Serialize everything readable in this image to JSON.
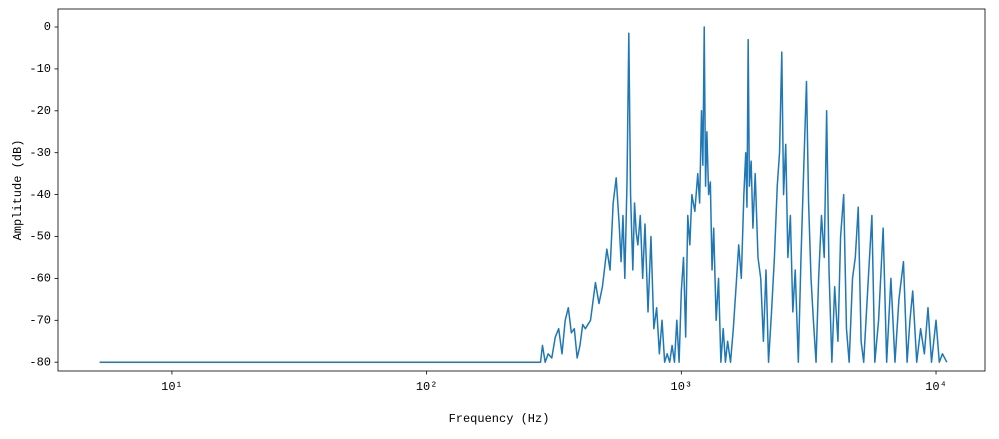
{
  "chart_data": {
    "type": "line",
    "xlabel": "Frequency (Hz)",
    "ylabel": "Amplitude (dB)",
    "xscale": "log",
    "xlim": [
      3.57,
      15570
    ],
    "ylim": [
      -82.1,
      4.3
    ],
    "xticks": [
      {
        "value": 10,
        "label": "10¹"
      },
      {
        "value": 100,
        "label": "10²"
      },
      {
        "value": 1000,
        "label": "10³"
      },
      {
        "value": 10000,
        "label": "10⁴"
      }
    ],
    "yticks": [
      0,
      -10,
      -20,
      -30,
      -40,
      -50,
      -60,
      -70,
      -80
    ],
    "grid": false,
    "x": [
      5.2,
      280,
      285,
      292,
      300,
      310,
      320,
      330,
      340,
      350,
      360,
      370,
      380,
      390,
      400,
      410,
      420,
      440,
      460,
      475,
      490,
      510,
      525,
      540,
      555,
      570,
      580,
      590,
      600,
      612,
      622,
      632,
      645,
      655,
      665,
      675,
      690,
      705,
      720,
      740,
      760,
      780,
      800,
      820,
      840,
      860,
      880,
      900,
      920,
      940,
      960,
      980,
      1000,
      1020,
      1040,
      1060,
      1080,
      1100,
      1130,
      1160,
      1180,
      1200,
      1215,
      1230,
      1245,
      1260,
      1280,
      1300,
      1320,
      1340,
      1370,
      1400,
      1430,
      1460,
      1490,
      1520,
      1560,
      1600,
      1640,
      1680,
      1720,
      1760,
      1790,
      1810,
      1830,
      1850,
      1880,
      1910,
      1950,
      2000,
      2050,
      2100,
      2150,
      2200,
      2260,
      2320,
      2380,
      2430,
      2480,
      2520,
      2570,
      2620,
      2680,
      2740,
      2800,
      2880,
      2950,
      3020,
      3100,
      3160,
      3230,
      3300,
      3380,
      3460,
      3550,
      3640,
      3720,
      3800,
      3900,
      4000,
      4120,
      4220,
      4340,
      4450,
      4560,
      4700,
      4820,
      4950,
      5080,
      5200,
      5400,
      5600,
      5750,
      5950,
      6200,
      6400,
      6650,
      6900,
      7150,
      7450,
      7700,
      7900,
      8100,
      8400,
      8700,
      9000,
      9300,
      9600,
      10000,
      10300,
      10600,
      11025
    ],
    "series": [
      {
        "color": "#1f77b4",
        "values": [
          -80,
          -80,
          -76,
          -80,
          -78,
          -79,
          -74,
          -72,
          -78,
          -70,
          -67,
          -73,
          -72,
          -79,
          -76,
          -71,
          -72,
          -70,
          -61,
          -66,
          -62,
          -53,
          -58,
          -42,
          -36,
          -47,
          -56,
          -45,
          -60,
          -37,
          -1.5,
          -40,
          -58,
          -42,
          -49,
          -52,
          -45,
          -60,
          -47,
          -68,
          -50,
          -72,
          -67,
          -78,
          -70,
          -80,
          -78,
          -80,
          -76,
          -80,
          -70,
          -80,
          -63,
          -55,
          -74,
          -45,
          -52,
          -40,
          -44,
          -35,
          -42,
          -20,
          -33,
          0,
          -38,
          -25,
          -40,
          -37,
          -58,
          -48,
          -70,
          -60,
          -80,
          -72,
          -80,
          -75,
          -80,
          -72,
          -62,
          -52,
          -60,
          -40,
          -30,
          -43,
          -3,
          -38,
          -32,
          -48,
          -35,
          -55,
          -60,
          -75,
          -58,
          -80,
          -68,
          -55,
          -38,
          -30,
          -6,
          -40,
          -28,
          -55,
          -45,
          -68,
          -58,
          -80,
          -55,
          -35,
          -13,
          -42,
          -60,
          -70,
          -80,
          -60,
          -45,
          -55,
          -20,
          -58,
          -80,
          -62,
          -75,
          -50,
          -40,
          -72,
          -80,
          -60,
          -55,
          -43,
          -75,
          -80,
          -62,
          -45,
          -80,
          -70,
          -48,
          -80,
          -60,
          -80,
          -65,
          -56,
          -80,
          -70,
          -63,
          -80,
          -72,
          -78,
          -67,
          -80,
          -70,
          -80,
          -78,
          -80
        ]
      }
    ]
  }
}
